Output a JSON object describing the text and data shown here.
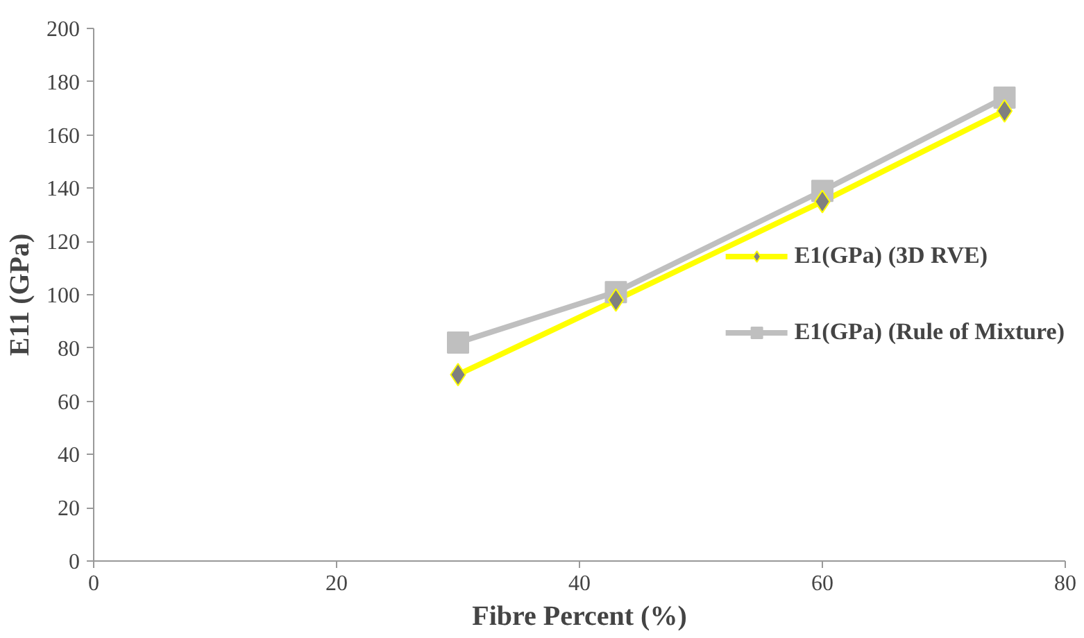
{
  "chart_data": {
    "type": "line",
    "xlabel": "Fibre Percent (%)",
    "ylabel": "E11 (GPa)",
    "x": [
      30,
      43,
      60,
      75
    ],
    "series": [
      {
        "name": "E1(GPa) (3D RVE)",
        "color": "#ffff00",
        "marker": "diamond",
        "values": [
          70,
          98,
          135,
          169
        ]
      },
      {
        "name": "E1(GPa) (Rule of Mixture)",
        "color": "#bfbfbf",
        "marker": "square",
        "values": [
          82,
          101,
          139,
          174
        ]
      }
    ],
    "xlim": [
      0,
      80
    ],
    "xticks": [
      0,
      20,
      40,
      60,
      80
    ],
    "ylim": [
      0,
      200
    ],
    "yticks": [
      0,
      20,
      40,
      60,
      80,
      100,
      120,
      140,
      160,
      180,
      200
    ],
    "grid": false,
    "legend": "right"
  }
}
